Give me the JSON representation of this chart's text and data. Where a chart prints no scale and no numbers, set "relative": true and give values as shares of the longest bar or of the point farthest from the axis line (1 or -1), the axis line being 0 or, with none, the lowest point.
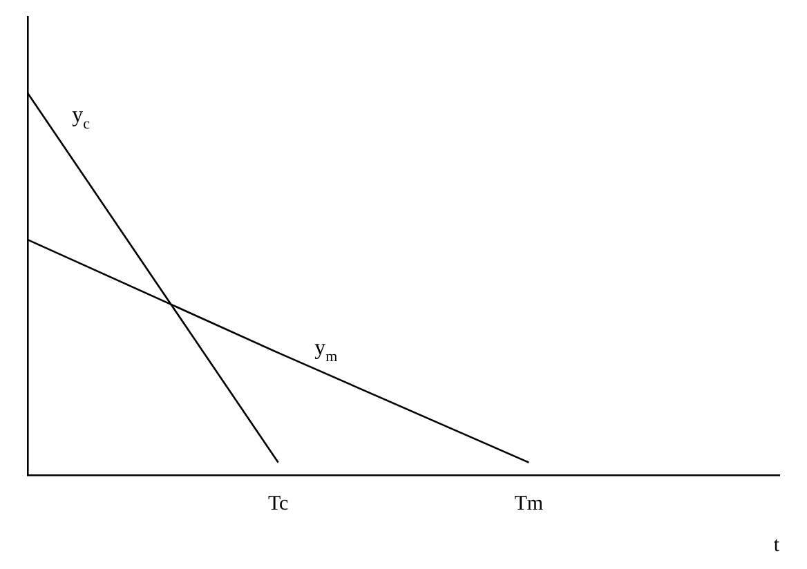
{
  "chart_data": {
    "type": "line",
    "relative": true,
    "xlabel": "t",
    "categories": [
      null,
      "Tc",
      "Tm",
      null
    ],
    "grid": false,
    "legend": false,
    "marker": "none",
    "line_style": "solid",
    "series": [
      {
        "name": "y$_{c}$",
        "color": "#000000",
        "values": [
          1,
          0.033,
          null,
          null
        ]
      },
      {
        "name": "y$_{m}$",
        "color": "#000000",
        "values": [
          0.616,
          0.32,
          0.033,
          null
        ]
      }
    ]
  }
}
